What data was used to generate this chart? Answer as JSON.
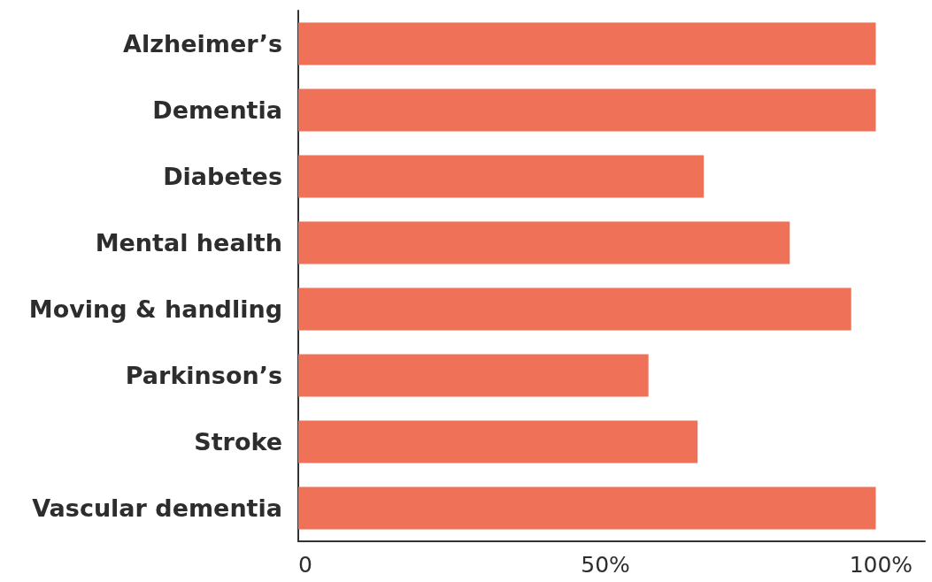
{
  "chart_data": {
    "type": "bar",
    "orientation": "horizontal",
    "categories": [
      "Alzheimer’s",
      "Dementia",
      "Diabetes",
      "Mental health",
      "Moving & handling",
      "Parkinson’s",
      "Stroke",
      "Vascular dementia"
    ],
    "values": [
      94,
      94,
      66,
      80,
      90,
      57,
      65,
      94
    ],
    "color": "#ee7158",
    "xlim": [
      0,
      102
    ],
    "xticks": [
      0,
      {
        "value": 50,
        "label": "50%"
      },
      {
        "value": 100,
        "label": "100%"
      }
    ],
    "grid": false
  }
}
